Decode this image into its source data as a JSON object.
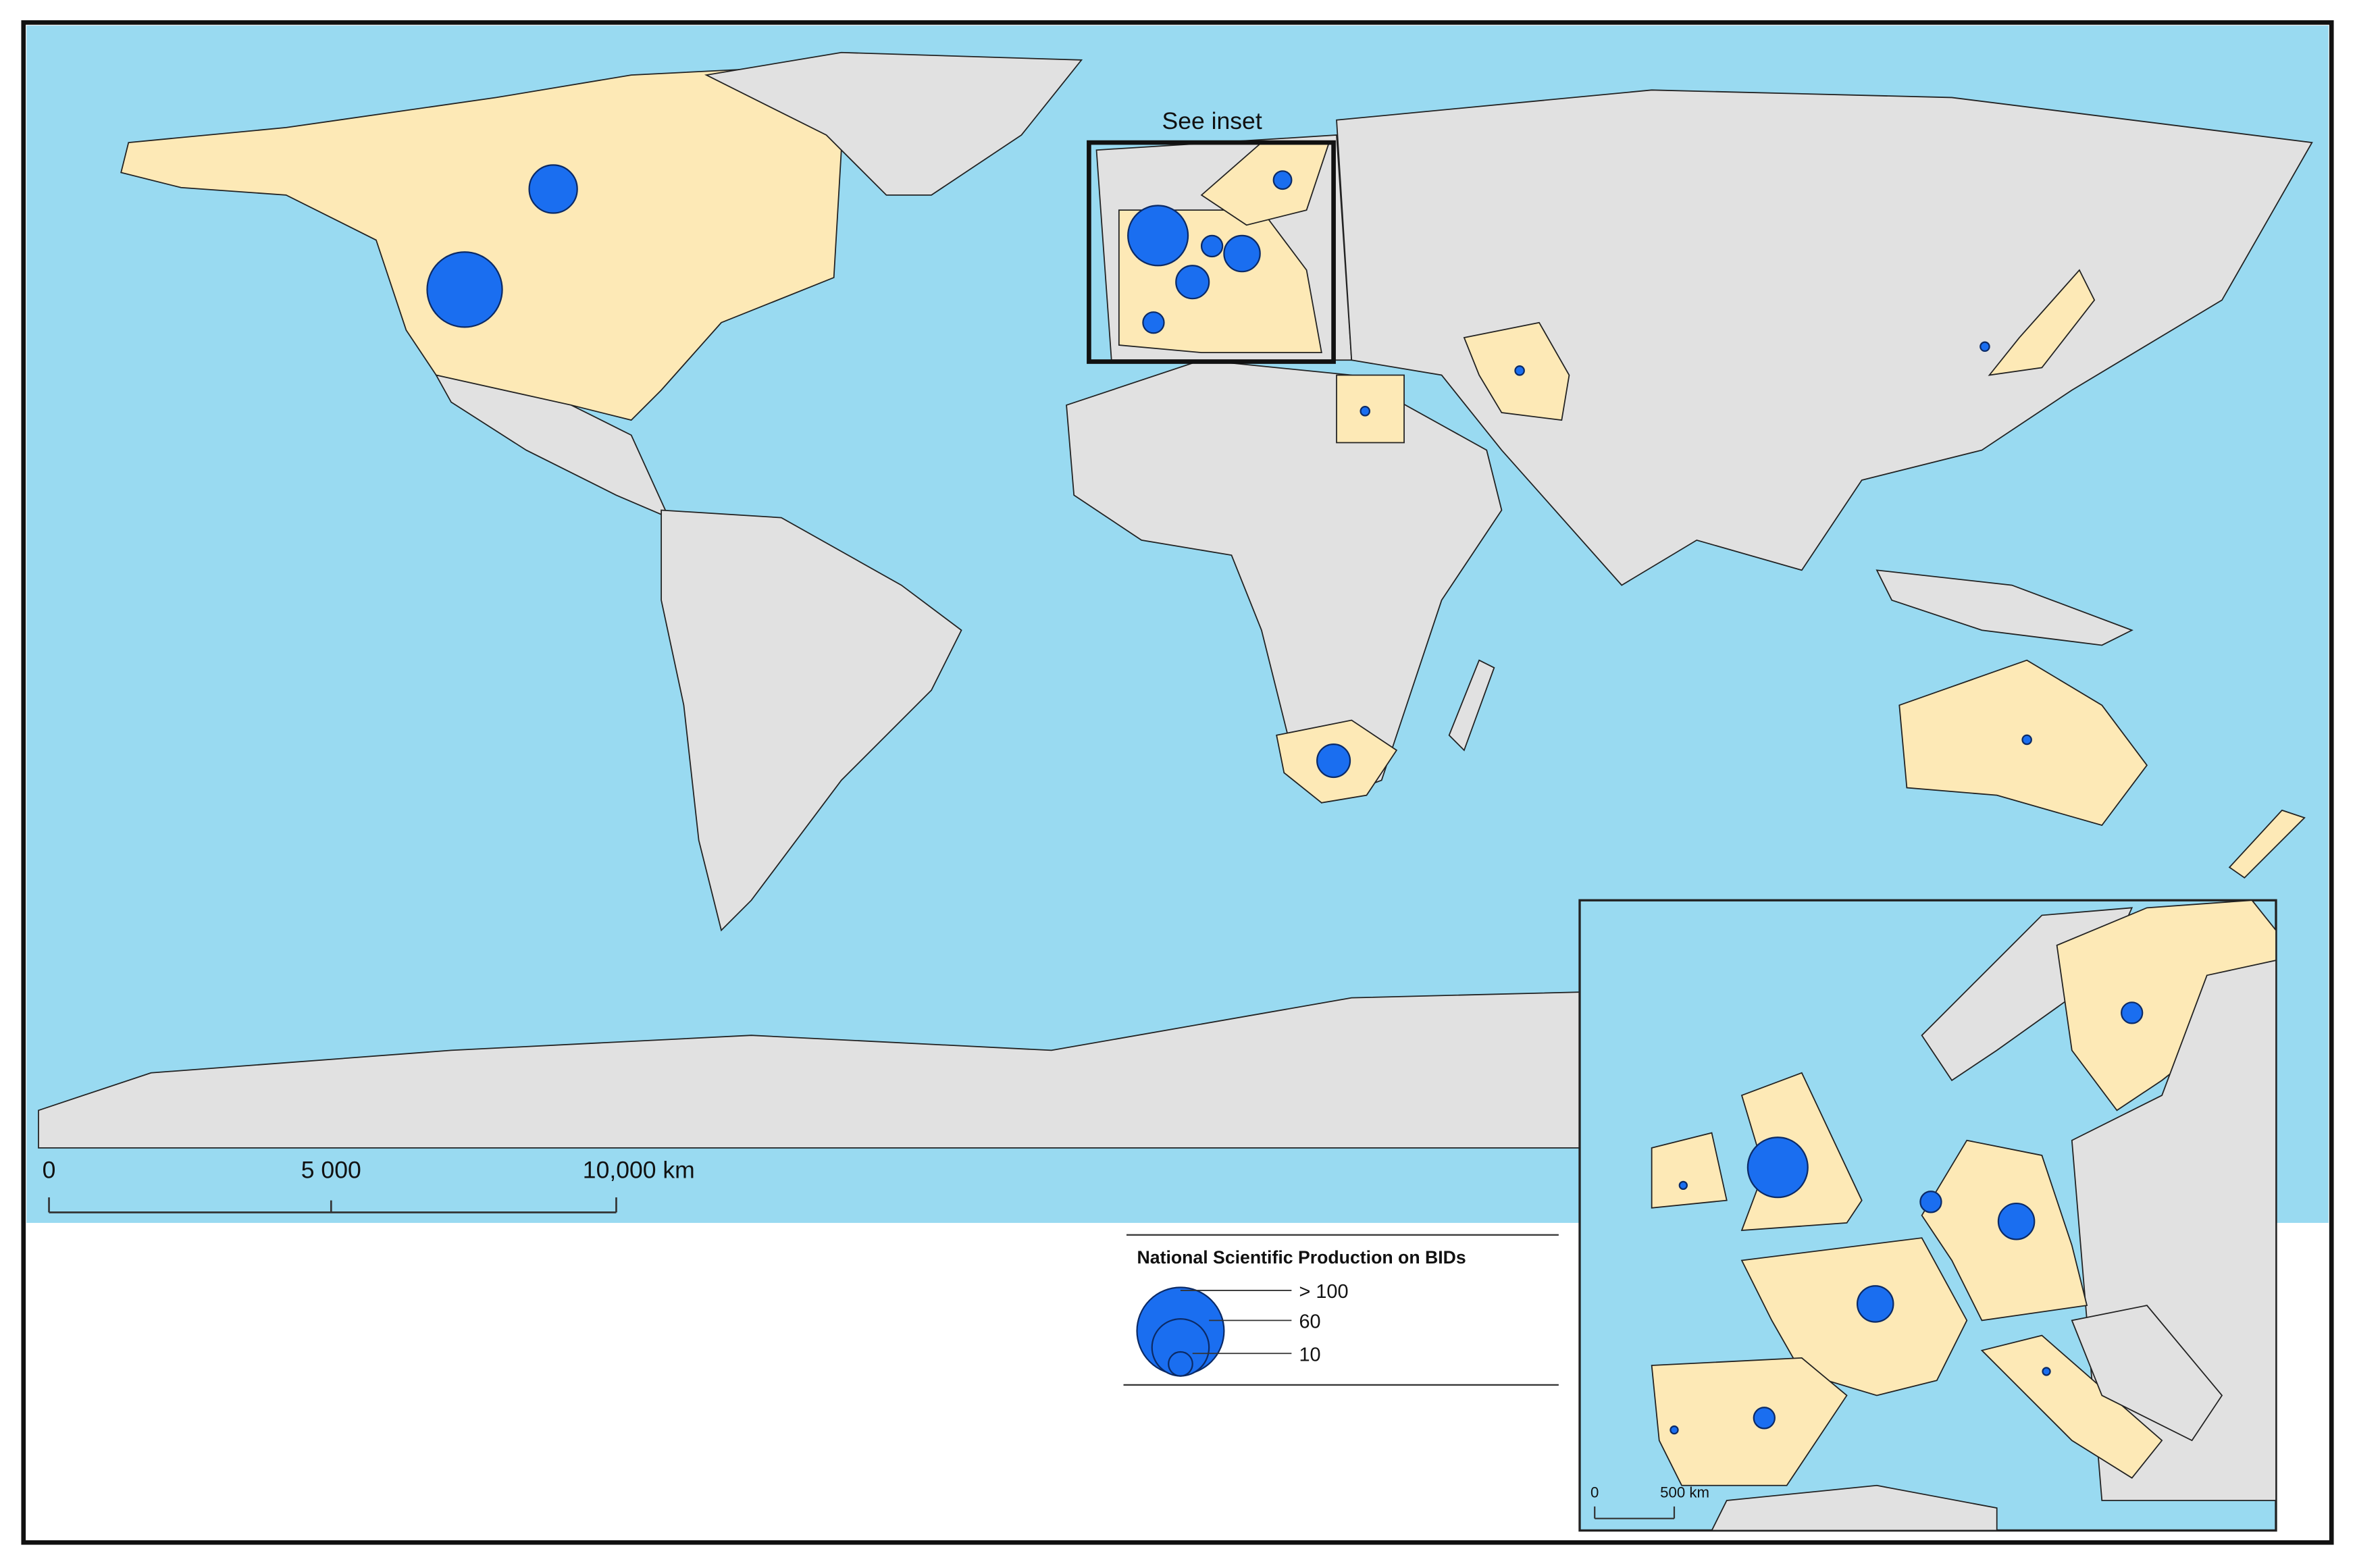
{
  "map": {
    "inset_label": "See inset",
    "scale_bar": {
      "labels": [
        "0",
        "5 000",
        "10,000 km"
      ]
    },
    "legend": {
      "title": "National Scientific Production on BIDs",
      "labels": [
        "> 100",
        "60",
        "10"
      ]
    },
    "inset_scale_bar": {
      "labels": [
        "0",
        "500 km"
      ]
    }
  }
}
